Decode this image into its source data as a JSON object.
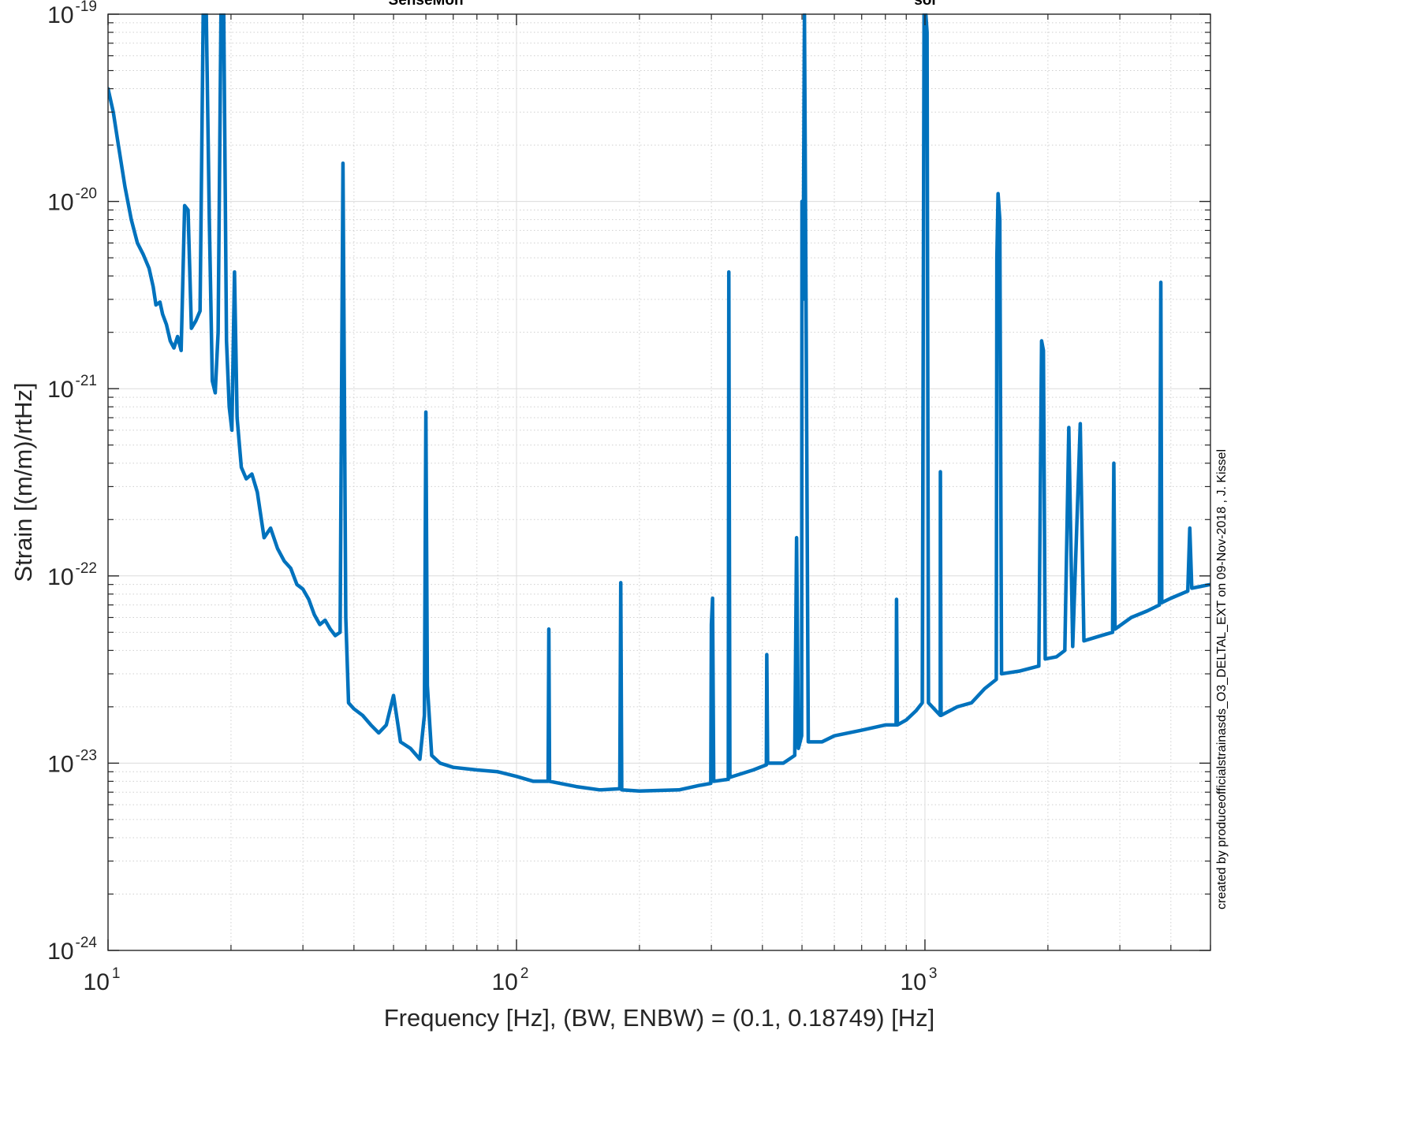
{
  "chart_data": {
    "type": "line",
    "title": "",
    "xlabel": "Frequency [Hz], (BW, ENBW) = (0.1, 0.18749) [Hz]",
    "ylabel": "Strain [(m/m)/rtHz]",
    "xscale": "log",
    "yscale": "log",
    "xlim": [
      10,
      5000
    ],
    "ylim": [
      1e-24,
      1e-19
    ],
    "grid": true,
    "minor_grid": true,
    "line_color": "#0072BD",
    "x_ticks": [
      {
        "base": "10",
        "exp": "1",
        "value": 10
      },
      {
        "base": "10",
        "exp": "2",
        "value": 100
      },
      {
        "base": "10",
        "exp": "3",
        "value": 1000
      }
    ],
    "y_ticks": [
      {
        "base": "10",
        "exp": "-19",
        "value": 1e-19
      },
      {
        "base": "10",
        "exp": "-20",
        "value": 1e-20
      },
      {
        "base": "10",
        "exp": "-21",
        "value": 1e-21
      },
      {
        "base": "10",
        "exp": "-22",
        "value": 1e-22
      },
      {
        "base": "10",
        "exp": "-23",
        "value": 1e-23
      },
      {
        "base": "10",
        "exp": "-24",
        "value": 1e-24
      }
    ],
    "top_labels": [
      {
        "text": "SenseMon",
        "x": 60
      },
      {
        "text": "sol",
        "x": 1000
      }
    ],
    "annotation": "created by produceofficialstrainasds_O3_DELTAL_EXT on 09-Nov-2018 , J. Kissel",
    "series": [
      {
        "values": [
          [
            10,
            4e-20
          ],
          [
            10.3,
            3e-20
          ],
          [
            10.6,
            2e-20
          ],
          [
            11,
            1.2e-20
          ],
          [
            11.4,
            8e-21
          ],
          [
            11.8,
            6e-21
          ],
          [
            12.2,
            5.2e-21
          ],
          [
            12.6,
            4.4e-21
          ],
          [
            12.9,
            3.5e-21
          ],
          [
            13.1,
            2.8e-21
          ],
          [
            13.4,
            2.9e-21
          ],
          [
            13.6,
            2.5e-21
          ],
          [
            13.9,
            2.2e-21
          ],
          [
            14.2,
            1.8e-21
          ],
          [
            14.5,
            1.65e-21
          ],
          [
            14.8,
            1.9e-21
          ],
          [
            15.1,
            1.6e-21
          ],
          [
            15.4,
            9.5e-21
          ],
          [
            15.7,
            9e-21
          ],
          [
            16,
            2.1e-21
          ],
          [
            16.4,
            2.3e-21
          ],
          [
            16.8,
            2.6e-21
          ],
          [
            17.1,
            1e-19
          ],
          [
            17.4,
            1e-19
          ],
          [
            17.7,
            8e-21
          ],
          [
            18,
            1.1e-21
          ],
          [
            18.3,
            9.5e-22
          ],
          [
            18.6,
            2e-21
          ],
          [
            18.9,
            1e-19
          ],
          [
            19.2,
            1e-19
          ],
          [
            19.5,
            1.8e-21
          ],
          [
            19.8,
            8e-22
          ],
          [
            20.1,
            6e-22
          ],
          [
            20.4,
            4.2e-21
          ],
          [
            20.7,
            7e-22
          ],
          [
            21.2,
            3.8e-22
          ],
          [
            21.8,
            3.3e-22
          ],
          [
            22.5,
            3.5e-22
          ],
          [
            23.2,
            2.8e-22
          ],
          [
            24.1,
            1.6e-22
          ],
          [
            25,
            1.8e-22
          ],
          [
            26,
            1.4e-22
          ],
          [
            27,
            1.2e-22
          ],
          [
            28,
            1.1e-22
          ],
          [
            29,
            9e-23
          ],
          [
            30,
            8.5e-23
          ],
          [
            31,
            7.5e-23
          ],
          [
            32,
            6.2e-23
          ],
          [
            33,
            5.5e-23
          ],
          [
            34,
            5.8e-23
          ],
          [
            35,
            5.2e-23
          ],
          [
            36,
            4.8e-23
          ],
          [
            37,
            5e-23
          ],
          [
            37.6,
            1.6e-20
          ],
          [
            38.2,
            6e-23
          ],
          [
            38.8,
            2.1e-23
          ],
          [
            40,
            1.95e-23
          ],
          [
            42,
            1.8e-23
          ],
          [
            44,
            1.6e-23
          ],
          [
            46,
            1.45e-23
          ],
          [
            48,
            1.6e-23
          ],
          [
            50,
            2.3e-23
          ],
          [
            52,
            1.3e-23
          ],
          [
            55,
            1.2e-23
          ],
          [
            58,
            1.05e-23
          ],
          [
            59.5,
            1.8e-23
          ],
          [
            60,
            7.5e-22
          ],
          [
            60.5,
            2.6e-23
          ],
          [
            62,
            1.1e-23
          ],
          [
            65,
            1e-23
          ],
          [
            70,
            9.5e-24
          ],
          [
            80,
            9.2e-24
          ],
          [
            90,
            9e-24
          ],
          [
            100,
            8.5e-24
          ],
          [
            110,
            8e-24
          ],
          [
            119.5,
            8e-24
          ],
          [
            120,
            5.2e-23
          ],
          [
            120.5,
            8e-24
          ],
          [
            140,
            7.5e-24
          ],
          [
            160,
            7.2e-24
          ],
          [
            179,
            7.3e-24
          ],
          [
            180,
            9.2e-23
          ],
          [
            181,
            7.2e-24
          ],
          [
            200,
            7.1e-24
          ],
          [
            250,
            7.2e-24
          ],
          [
            280,
            7.6e-24
          ],
          [
            299,
            7.8e-24
          ],
          [
            300,
            5.5e-23
          ],
          [
            302,
            7.6e-23
          ],
          [
            304,
            8e-24
          ],
          [
            330,
            8.2e-24
          ],
          [
            331,
            4.2e-21
          ],
          [
            333,
            8.4e-24
          ],
          [
            380,
            9.2e-24
          ],
          [
            409,
            9.8e-24
          ],
          [
            410,
            3.8e-23
          ],
          [
            412,
            1e-23
          ],
          [
            450,
            1e-23
          ],
          [
            480,
            1.1e-23
          ],
          [
            485,
            1.6e-22
          ],
          [
            490,
            1.2e-23
          ],
          [
            499,
            1.4e-23
          ],
          [
            500,
            1e-20
          ],
          [
            503,
            3e-21
          ],
          [
            507,
            1e-19
          ],
          [
            512,
            2e-21
          ],
          [
            518,
            1.3e-23
          ],
          [
            560,
            1.3e-23
          ],
          [
            600,
            1.4e-23
          ],
          [
            700,
            1.5e-23
          ],
          [
            800,
            1.6e-23
          ],
          [
            850,
            1.6e-23
          ],
          [
            852,
            7.5e-23
          ],
          [
            856,
            1.6e-23
          ],
          [
            900,
            1.7e-23
          ],
          [
            950,
            1.9e-23
          ],
          [
            985,
            2.1e-23
          ],
          [
            995,
            1e-19
          ],
          [
            1005,
            1e-19
          ],
          [
            1012,
            8e-20
          ],
          [
            1020,
            2.1e-23
          ],
          [
            1090,
            1.8e-23
          ],
          [
            1091,
            3.6e-22
          ],
          [
            1095,
            1.8e-23
          ],
          [
            1200,
            2e-23
          ],
          [
            1300,
            2.1e-23
          ],
          [
            1400,
            2.5e-23
          ],
          [
            1495,
            2.8e-23
          ],
          [
            1500,
            5e-21
          ],
          [
            1510,
            1.1e-20
          ],
          [
            1525,
            8e-21
          ],
          [
            1540,
            3e-23
          ],
          [
            1700,
            3.1e-23
          ],
          [
            1900,
            3.3e-23
          ],
          [
            1930,
            1.8e-21
          ],
          [
            1950,
            1.6e-21
          ],
          [
            1970,
            3.6e-23
          ],
          [
            2100,
            3.7e-23
          ],
          [
            2200,
            4e-23
          ],
          [
            2250,
            6.2e-22
          ],
          [
            2300,
            4.2e-23
          ],
          [
            2400,
            6.5e-22
          ],
          [
            2450,
            4.5e-23
          ],
          [
            2700,
            4.8e-23
          ],
          [
            2880,
            5e-23
          ],
          [
            2900,
            4e-22
          ],
          [
            2920,
            5.2e-23
          ],
          [
            3200,
            6e-23
          ],
          [
            3500,
            6.5e-23
          ],
          [
            3750,
            7e-23
          ],
          [
            3780,
            3.7e-21
          ],
          [
            3800,
            7.2e-23
          ],
          [
            4000,
            7.6e-23
          ],
          [
            4400,
            8.3e-23
          ],
          [
            4450,
            1.8e-22
          ],
          [
            4500,
            8.6e-23
          ],
          [
            5000,
            9e-23
          ]
        ]
      }
    ]
  }
}
